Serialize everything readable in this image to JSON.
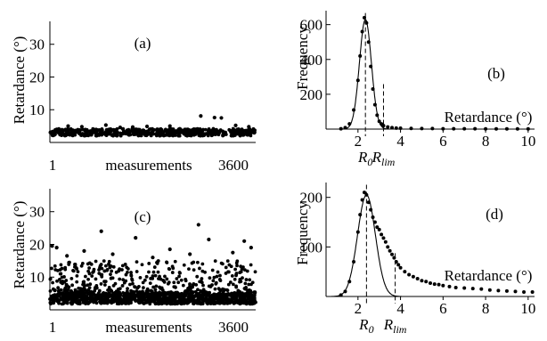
{
  "chart_data": [
    {
      "id": "a",
      "type": "scatter",
      "panel_label": "(a)",
      "xlabel": "measurements",
      "ylabel": "Retardance (°)",
      "xlim": [
        1,
        3600
      ],
      "ylim": [
        0,
        37
      ],
      "x_ticks": [
        "1",
        "3600"
      ],
      "y_ticks": [
        10,
        20,
        30
      ],
      "series": [
        {
          "baseline_band": [
            2.0,
            4.2
          ],
          "band_points": 600,
          "outliers": [
            {
              "x": 320,
              "y": 5.0
            },
            {
              "x": 560,
              "y": 4.8
            },
            {
              "x": 980,
              "y": 5.3
            },
            {
              "x": 1230,
              "y": 4.6
            },
            {
              "x": 1700,
              "y": 4.9
            },
            {
              "x": 2100,
              "y": 5.0
            },
            {
              "x": 2640,
              "y": 8.1
            },
            {
              "x": 2880,
              "y": 7.6
            },
            {
              "x": 3000,
              "y": 7.5
            },
            {
              "x": 3250,
              "y": 5.2
            },
            {
              "x": 3480,
              "y": 4.8
            },
            {
              "x": 1450,
              "y": 4.7
            }
          ]
        }
      ]
    },
    {
      "id": "b",
      "type": "line",
      "panel_label": "(b)",
      "xlabel": "Retardance (°)",
      "ylabel": "Frequency",
      "xlim": [
        0.5,
        10.3
      ],
      "ylim": [
        0,
        680
      ],
      "x_ticks": [
        2,
        4,
        6,
        8,
        10
      ],
      "y_ticks": [
        200,
        400,
        600
      ],
      "series": [
        {
          "kind": "histogram_points",
          "x": [
            1.2,
            1.4,
            1.6,
            1.8,
            2.0,
            2.1,
            2.2,
            2.3,
            2.4,
            2.5,
            2.6,
            2.7,
            2.8,
            2.9,
            3.0,
            3.1,
            3.2,
            3.4,
            3.6,
            3.8,
            4.0,
            4.5,
            5,
            5.5,
            6,
            6.5,
            7,
            7.5,
            8,
            8.5,
            9,
            9.5,
            10
          ],
          "y": [
            2,
            8,
            30,
            110,
            280,
            420,
            560,
            640,
            610,
            500,
            360,
            230,
            140,
            80,
            45,
            30,
            20,
            12,
            8,
            6,
            5,
            4,
            3,
            3,
            2,
            2,
            2,
            2,
            1,
            1,
            1,
            1,
            1
          ]
        },
        {
          "kind": "gaussian_fit",
          "mean": 2.35,
          "sigma": 0.28,
          "amplitude": 630
        }
      ],
      "markers": [
        {
          "x": 2.35,
          "label_main": "R",
          "label_sub": "0"
        },
        {
          "x": 3.2,
          "label_main": "R",
          "label_sub": "lim"
        }
      ]
    },
    {
      "id": "c",
      "type": "scatter",
      "panel_label": "(c)",
      "xlabel": "measurements",
      "ylabel": "Retardance (°)",
      "xlim": [
        1,
        3600
      ],
      "ylim": [
        0,
        37
      ],
      "x_ticks": [
        "1",
        "3600"
      ],
      "y_ticks": [
        10,
        20,
        30
      ],
      "series": [
        {
          "baseline_band": [
            1.8,
            5.0
          ],
          "band_points": 900,
          "scatter_range": [
            5,
            15
          ],
          "scatter_points": 450,
          "outliers": [
            {
              "x": 40,
              "y": 19.5
            },
            {
              "x": 120,
              "y": 19.0
            },
            {
              "x": 900,
              "y": 24.0
            },
            {
              "x": 1500,
              "y": 22.0
            },
            {
              "x": 2600,
              "y": 26.0
            },
            {
              "x": 2780,
              "y": 21.5
            },
            {
              "x": 3400,
              "y": 21.0
            },
            {
              "x": 3520,
              "y": 19.0
            },
            {
              "x": 600,
              "y": 18.0
            },
            {
              "x": 1100,
              "y": 17.0
            },
            {
              "x": 2100,
              "y": 18.5
            },
            {
              "x": 3200,
              "y": 17.5
            },
            {
              "x": 300,
              "y": 16.5
            },
            {
              "x": 1800,
              "y": 16.0
            },
            {
              "x": 2450,
              "y": 17.0
            }
          ]
        }
      ]
    },
    {
      "id": "d",
      "type": "line",
      "panel_label": "(d)",
      "xlabel": "Retardance (°)",
      "ylabel": "Frequency",
      "xlim": [
        0.5,
        10.3
      ],
      "ylim": [
        0,
        230
      ],
      "x_ticks": [
        2,
        4,
        6,
        8,
        10
      ],
      "y_ticks": [
        100,
        200
      ],
      "series": [
        {
          "kind": "histogram_points",
          "x": [
            1.2,
            1.4,
            1.6,
            1.8,
            2.0,
            2.1,
            2.2,
            2.3,
            2.4,
            2.5,
            2.6,
            2.7,
            2.8,
            2.9,
            3.0,
            3.1,
            3.2,
            3.3,
            3.4,
            3.5,
            3.6,
            3.7,
            3.8,
            3.9,
            4.0,
            4.2,
            4.4,
            4.6,
            4.8,
            5.0,
            5.2,
            5.4,
            5.6,
            5.8,
            6.0,
            6.3,
            6.6,
            7.0,
            7.4,
            7.8,
            8.2,
            8.6,
            9.0,
            9.4,
            9.8,
            10.2
          ],
          "y": [
            3,
            10,
            30,
            70,
            130,
            165,
            195,
            210,
            205,
            190,
            175,
            160,
            150,
            140,
            135,
            125,
            118,
            110,
            100,
            92,
            85,
            78,
            70,
            64,
            58,
            50,
            44,
            40,
            36,
            32,
            30,
            27,
            25,
            24,
            22,
            20,
            18,
            17,
            16,
            15,
            13,
            12,
            11,
            10,
            9,
            9
          ]
        },
        {
          "kind": "gaussian_fit",
          "mean": 2.4,
          "sigma": 0.42,
          "amplitude": 205
        }
      ],
      "markers": [
        {
          "x": 2.4,
          "label_main": "R",
          "label_sub": "0"
        },
        {
          "x": 3.75,
          "label_main": "R",
          "label_sub": "lim"
        }
      ]
    }
  ]
}
